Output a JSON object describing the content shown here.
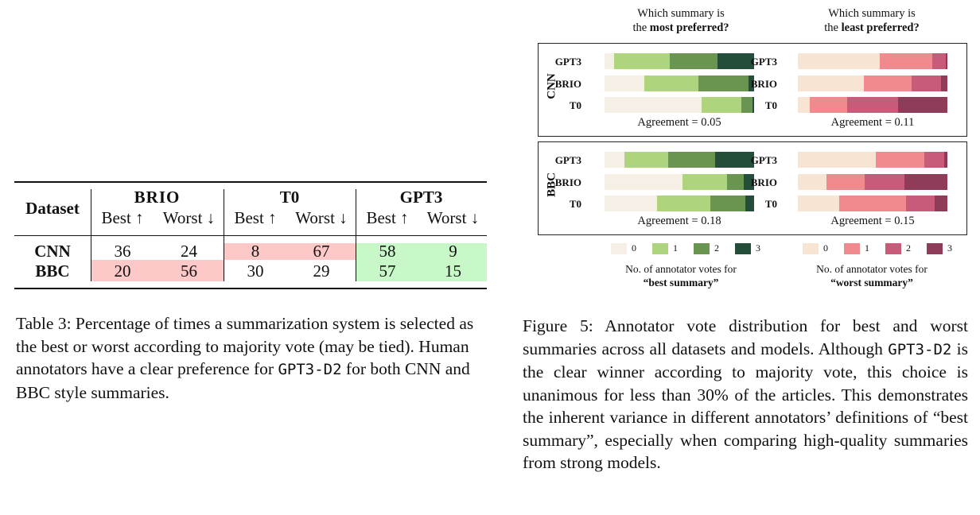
{
  "table": {
    "header": {
      "dataset": "Dataset",
      "groups": [
        "BRIO",
        "T0",
        "GPT3"
      ],
      "best": "Best ↑",
      "worst": "Worst ↓"
    },
    "rows": [
      {
        "dataset": "CNN",
        "values": [
          "36",
          "24",
          "8",
          "67",
          "58",
          "9"
        ]
      },
      {
        "dataset": "BBC",
        "values": [
          "20",
          "56",
          "30",
          "29",
          "57",
          "15"
        ]
      }
    ],
    "highlight_colors": {
      "pink": "#fcc8c8",
      "green": "#c8f8c8"
    }
  },
  "table_caption": {
    "text_before": "Table 3: Percentage of times a summarization system is selected as the best or worst according to majority vote (may be tied). Human annotators have a clear preference for ",
    "code": "GPT3-D2",
    "text_after": " for both CNN and BBC style summaries."
  },
  "figure": {
    "col_heads": [
      {
        "line1": "Which summary is",
        "line2_pre": "the ",
        "line2_bold": "most preferred?"
      },
      {
        "line1": "Which summary is",
        "line2_pre": "the ",
        "line2_bold": "least preferred?"
      }
    ],
    "datasets": [
      {
        "name": "CNN",
        "best_agreement": "Agreement = 0.05",
        "worst_agreement": "Agreement = 0.11",
        "best": [
          {
            "model": "GPT3",
            "values": [
              0.07,
              0.39,
              0.34,
              0.26
            ]
          },
          {
            "model": "BRIO",
            "values": [
              0.29,
              0.39,
              0.36,
              0.04
            ]
          },
          {
            "model": "T0",
            "values": [
              0.68,
              0.28,
              0.08,
              0.01
            ]
          }
        ],
        "worst": [
          {
            "model": "GPT3",
            "values": [
              0.54,
              0.35,
              0.09,
              0.01
            ]
          },
          {
            "model": "BRIO",
            "values": [
              0.43,
              0.31,
              0.19,
              0.04
            ]
          },
          {
            "model": "T0",
            "values": [
              0.08,
              0.25,
              0.34,
              0.33
            ]
          }
        ]
      },
      {
        "name": "BBC",
        "best_agreement": "Agreement = 0.18",
        "worst_agreement": "Agreement = 0.15",
        "best": [
          {
            "model": "GPT3",
            "values": [
              0.14,
              0.3,
              0.33,
              0.27
            ]
          },
          {
            "model": "BRIO",
            "values": [
              0.52,
              0.3,
              0.11,
              0.07
            ]
          },
          {
            "model": "T0",
            "values": [
              0.36,
              0.37,
              0.24,
              0.06
            ]
          }
        ],
        "worst": [
          {
            "model": "GPT3",
            "values": [
              0.51,
              0.32,
              0.13,
              0.02
            ]
          },
          {
            "model": "BRIO",
            "values": [
              0.19,
              0.25,
              0.26,
              0.28
            ]
          },
          {
            "model": "T0",
            "values": [
              0.27,
              0.43,
              0.19,
              0.08
            ]
          }
        ]
      }
    ],
    "best_colors": [
      "#f5efe6",
      "#aed47e",
      "#6a9550",
      "#244d3a"
    ],
    "worst_colors": [
      "#f8e4d2",
      "#f18a8e",
      "#c85b7a",
      "#8f3c5a"
    ],
    "legend": {
      "labels": [
        "0",
        "1",
        "2",
        "3"
      ],
      "best_line1": "No. of annotator votes for",
      "best_line2": "“best summary”",
      "worst_line1": "No. of annotator votes for",
      "worst_line2": "“worst summary”"
    }
  },
  "figure_caption": {
    "part1": "Figure 5: Annotator vote distribution for best and worst summaries across all datasets and models. Although ",
    "code": "GPT3-D2",
    "part2": " is the clear winner according to majority vote, this choice is unanimous for less than 30% of the articles. This demonstrates the inherent variance in different annotators’ definitions of “best summary”, especially when comparing high-quality summaries from strong models."
  }
}
